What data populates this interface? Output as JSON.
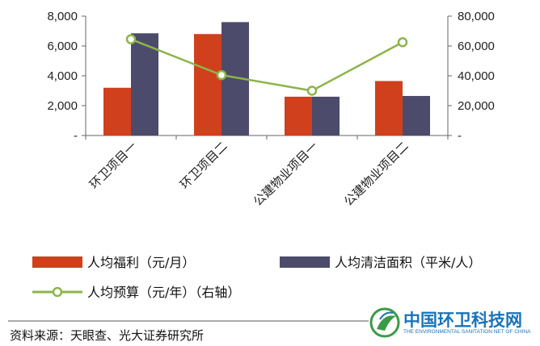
{
  "chart_data": {
    "type": "bar",
    "categories": [
      "环卫项目一",
      "环卫项目二",
      "公建物业项目一",
      "公建物业项目二"
    ],
    "series": [
      {
        "name": "人均福利（元/月）",
        "kind": "bar",
        "axis": "left",
        "color": "#d0401c",
        "values": [
          3200,
          6800,
          2600,
          3650
        ]
      },
      {
        "name": "人均清洁面积（平米/人）",
        "kind": "bar",
        "axis": "left",
        "color": "#4d4b6b",
        "values": [
          6850,
          7600,
          2600,
          2650
        ]
      },
      {
        "name": "人均预算（元/年）（右轴）",
        "kind": "line",
        "axis": "right",
        "color": "#8cb54a",
        "values": [
          64500,
          40500,
          30000,
          62500
        ]
      }
    ],
    "y_left": {
      "min": 0,
      "max": 8000,
      "ticks": [
        0,
        2000,
        4000,
        6000,
        8000
      ],
      "tick_labels": [
        "-",
        "2,000",
        "4,000",
        "6,000",
        "8,000"
      ]
    },
    "y_right": {
      "min": 0,
      "max": 80000,
      "ticks": [
        0,
        20000,
        40000,
        60000,
        80000
      ],
      "tick_labels": [
        "-",
        "20,000",
        "40,000",
        "60,000",
        "80,000"
      ]
    },
    "grid": false,
    "legend_placement": "bottom"
  },
  "source_note": "资料来源：天眼查、光大证券研究所",
  "watermark": {
    "name": "中国环卫科技网",
    "tagline": "THE ENVIRONMENTAL SANITATION NET OF CHINA",
    "color": "#1a73b8"
  }
}
